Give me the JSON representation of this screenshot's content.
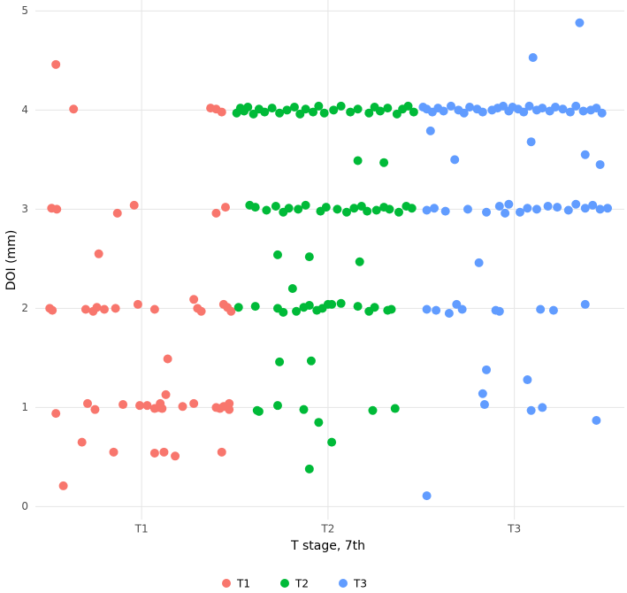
{
  "chart_data": {
    "type": "scatter",
    "x_label": "T stage, 7th",
    "y_label": "DOI (mm)",
    "xlim": [
      0.43,
      3.59
    ],
    "ylim": [
      -0.13,
      5.11
    ],
    "xticks": [
      {
        "value": 1,
        "label": "T1"
      },
      {
        "value": 2,
        "label": "T2"
      },
      {
        "value": 3,
        "label": "T3"
      }
    ],
    "yticks": [
      0,
      1,
      2,
      3,
      4,
      5
    ],
    "grid": true,
    "legend": "bottom",
    "series": [
      {
        "name": "T1",
        "color": "#F8766D",
        "x": [
          0.54,
          0.635,
          0.517,
          0.545,
          0.507,
          0.521,
          0.7,
          0.74,
          0.76,
          0.8,
          0.86,
          0.77,
          0.87,
          0.96,
          0.98,
          1.07,
          1.28,
          1.3,
          1.32,
          1.44,
          1.46,
          1.48,
          1.4,
          1.45,
          1.37,
          1.4,
          1.43,
          0.54,
          0.71,
          0.75,
          0.9,
          0.99,
          1.03,
          1.07,
          1.09,
          1.1,
          1.11,
          1.13,
          1.14,
          1.22,
          1.28,
          1.4,
          1.42,
          1.44,
          1.47,
          1.47,
          0.68,
          0.85,
          1.07,
          1.12,
          1.18,
          1.43,
          0.58
        ],
        "y": [
          4.46,
          4.01,
          3.01,
          3.0,
          2.0,
          1.98,
          1.99,
          1.97,
          2.01,
          1.99,
          2.0,
          2.55,
          2.96,
          3.04,
          2.04,
          1.99,
          2.09,
          2.0,
          1.97,
          2.04,
          2.01,
          1.97,
          2.96,
          3.02,
          4.02,
          4.01,
          3.98,
          0.94,
          1.04,
          0.98,
          1.03,
          1.02,
          1.02,
          0.99,
          1.0,
          1.04,
          0.99,
          1.13,
          1.49,
          1.01,
          1.04,
          1.0,
          0.99,
          1.01,
          1.04,
          0.98,
          0.65,
          0.55,
          0.54,
          0.55,
          0.51,
          0.55,
          0.21
        ]
      },
      {
        "name": "T2",
        "color": "#00BA38",
        "x": [
          1.51,
          1.53,
          1.55,
          1.57,
          1.6,
          1.63,
          1.66,
          1.7,
          1.74,
          1.78,
          1.82,
          1.85,
          1.88,
          1.92,
          1.95,
          1.98,
          2.03,
          2.07,
          2.12,
          2.16,
          2.22,
          2.25,
          2.28,
          2.32,
          2.37,
          2.4,
          2.43,
          2.46,
          1.58,
          1.61,
          1.67,
          1.72,
          1.76,
          1.79,
          1.84,
          1.88,
          1.96,
          1.99,
          2.05,
          2.1,
          2.14,
          2.18,
          2.21,
          2.26,
          2.3,
          2.33,
          2.38,
          2.42,
          2.45,
          1.52,
          1.61,
          1.73,
          1.76,
          1.83,
          1.87,
          1.9,
          1.94,
          1.97,
          2.0,
          2.02,
          2.07,
          2.16,
          2.22,
          2.25,
          2.32,
          2.34,
          2.16,
          2.3,
          1.73,
          1.9,
          2.17,
          1.81,
          1.74,
          1.91,
          1.95,
          2.02,
          1.9,
          1.62,
          1.63,
          1.73,
          1.87,
          2.24,
          2.36
        ],
        "y": [
          3.97,
          4.02,
          3.99,
          4.03,
          3.96,
          4.01,
          3.98,
          4.02,
          3.97,
          4.0,
          4.03,
          3.96,
          4.01,
          3.98,
          4.04,
          3.97,
          4.0,
          4.04,
          3.98,
          4.01,
          3.97,
          4.03,
          3.99,
          4.02,
          3.96,
          4.01,
          4.04,
          3.98,
          3.04,
          3.02,
          2.99,
          3.03,
          2.97,
          3.01,
          3.0,
          3.04,
          2.98,
          3.02,
          3.0,
          2.97,
          3.01,
          3.03,
          2.98,
          2.99,
          3.02,
          3.0,
          2.97,
          3.03,
          3.01,
          2.01,
          2.02,
          2.0,
          1.96,
          1.97,
          2.01,
          2.03,
          1.98,
          2.0,
          2.04,
          2.04,
          2.05,
          2.02,
          1.97,
          2.01,
          1.98,
          1.99,
          3.49,
          3.47,
          2.54,
          2.52,
          2.47,
          2.2,
          1.46,
          1.47,
          0.85,
          0.65,
          0.38,
          0.97,
          0.96,
          1.02,
          0.98,
          0.97,
          0.99
        ]
      },
      {
        "name": "T3",
        "color": "#619CFF",
        "x": [
          2.51,
          2.53,
          2.56,
          2.59,
          2.62,
          2.66,
          2.7,
          2.73,
          2.76,
          2.8,
          2.83,
          2.88,
          2.91,
          2.94,
          2.97,
          2.99,
          3.02,
          3.05,
          3.08,
          3.12,
          3.15,
          3.19,
          3.22,
          3.26,
          3.3,
          3.33,
          3.37,
          3.41,
          3.44,
          3.47,
          2.53,
          2.57,
          2.63,
          2.75,
          2.85,
          2.92,
          2.95,
          2.97,
          3.03,
          3.07,
          3.12,
          3.18,
          3.23,
          3.29,
          3.33,
          3.38,
          3.42,
          3.46,
          3.5,
          2.53,
          2.58,
          2.65,
          2.69,
          2.72,
          2.9,
          2.92,
          3.14,
          3.21,
          3.38,
          3.35,
          3.1,
          2.55,
          3.09,
          2.68,
          3.38,
          3.46,
          2.81,
          2.85,
          3.07,
          2.83,
          2.84,
          3.09,
          3.15,
          3.44,
          2.53
        ],
        "y": [
          4.03,
          4.01,
          3.98,
          4.02,
          3.99,
          4.04,
          4.0,
          3.97,
          4.03,
          4.01,
          3.98,
          4.0,
          4.02,
          4.04,
          3.99,
          4.03,
          4.01,
          3.98,
          4.04,
          4.0,
          4.02,
          3.99,
          4.03,
          4.01,
          3.98,
          4.04,
          3.99,
          4.0,
          4.02,
          3.97,
          2.99,
          3.01,
          2.98,
          3.0,
          2.97,
          3.03,
          2.96,
          3.05,
          2.97,
          3.01,
          3.0,
          3.03,
          3.02,
          2.99,
          3.05,
          3.01,
          3.04,
          3.0,
          3.01,
          1.99,
          1.98,
          1.95,
          2.04,
          1.99,
          1.98,
          1.97,
          1.99,
          1.98,
          2.04,
          4.88,
          4.53,
          3.79,
          3.68,
          3.5,
          3.55,
          3.45,
          2.46,
          1.38,
          1.28,
          1.14,
          1.03,
          0.97,
          1.0,
          0.87,
          0.11
        ]
      }
    ]
  }
}
